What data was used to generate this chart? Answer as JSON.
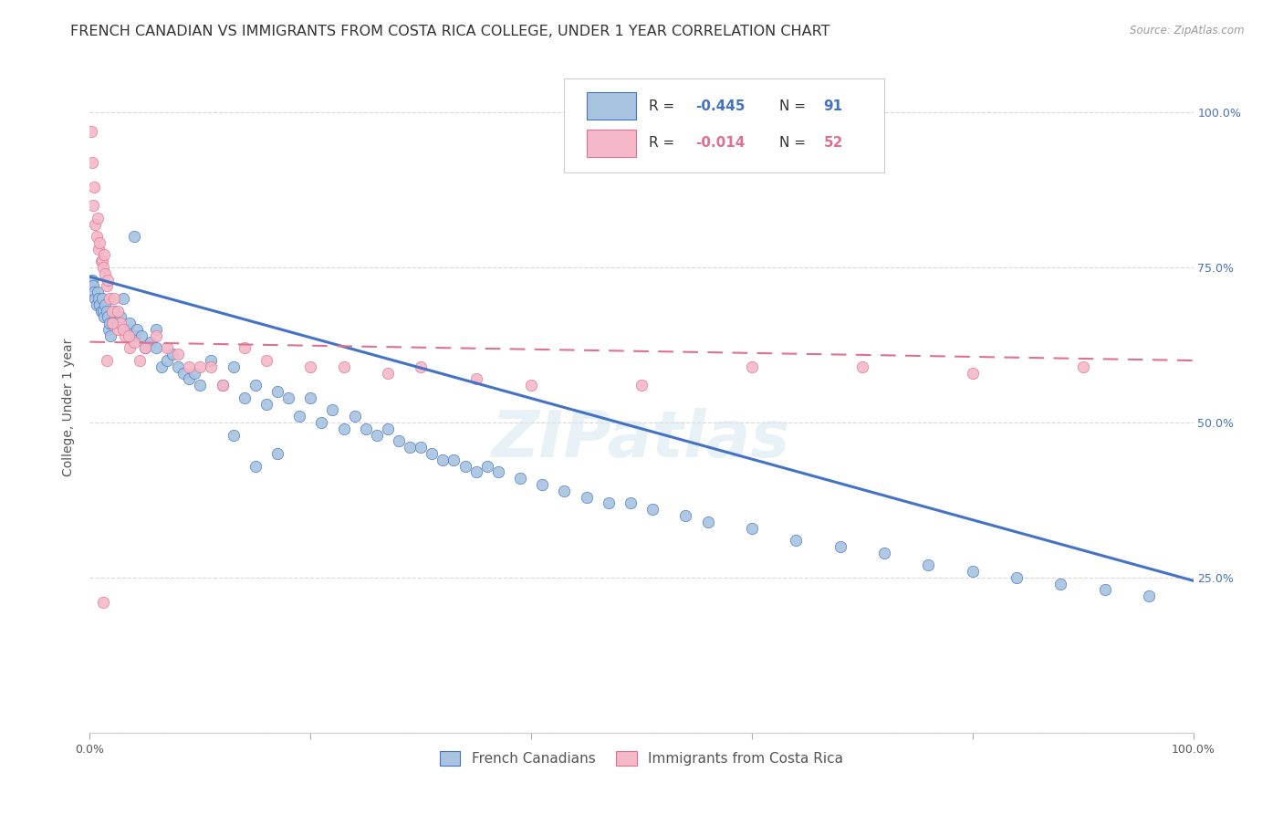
{
  "title": "FRENCH CANADIAN VS IMMIGRANTS FROM COSTA RICA COLLEGE, UNDER 1 YEAR CORRELATION CHART",
  "source": "Source: ZipAtlas.com",
  "ylabel": "College, Under 1 year",
  "ylabel_right_ticks": [
    "100.0%",
    "75.0%",
    "50.0%",
    "25.0%"
  ],
  "ylabel_right_vals": [
    1.0,
    0.75,
    0.5,
    0.25
  ],
  "watermark": "ZIPatlas",
  "blue_R": -0.445,
  "blue_N": 91,
  "pink_R": -0.014,
  "pink_N": 52,
  "blue_color": "#a8c4e0",
  "blue_line_color": "#4472c4",
  "pink_color": "#f4b8c8",
  "pink_line_color": "#e07090",
  "blue_scatter_x": [
    0.001,
    0.002,
    0.003,
    0.004,
    0.005,
    0.006,
    0.007,
    0.008,
    0.009,
    0.01,
    0.011,
    0.012,
    0.013,
    0.014,
    0.015,
    0.016,
    0.017,
    0.018,
    0.019,
    0.02,
    0.022,
    0.025,
    0.028,
    0.03,
    0.033,
    0.036,
    0.04,
    0.043,
    0.047,
    0.05,
    0.055,
    0.06,
    0.065,
    0.07,
    0.075,
    0.08,
    0.085,
    0.09,
    0.095,
    0.1,
    0.11,
    0.12,
    0.13,
    0.14,
    0.15,
    0.16,
    0.17,
    0.18,
    0.19,
    0.2,
    0.21,
    0.22,
    0.23,
    0.24,
    0.25,
    0.26,
    0.27,
    0.28,
    0.29,
    0.3,
    0.31,
    0.32,
    0.33,
    0.34,
    0.35,
    0.36,
    0.37,
    0.39,
    0.41,
    0.43,
    0.45,
    0.47,
    0.49,
    0.51,
    0.54,
    0.56,
    0.6,
    0.64,
    0.68,
    0.72,
    0.76,
    0.8,
    0.84,
    0.88,
    0.92,
    0.96,
    0.13,
    0.15,
    0.17,
    0.04,
    0.06
  ],
  "blue_scatter_y": [
    0.72,
    0.73,
    0.72,
    0.71,
    0.7,
    0.69,
    0.71,
    0.7,
    0.69,
    0.68,
    0.7,
    0.68,
    0.67,
    0.69,
    0.68,
    0.67,
    0.65,
    0.66,
    0.64,
    0.66,
    0.68,
    0.66,
    0.67,
    0.7,
    0.65,
    0.66,
    0.64,
    0.65,
    0.64,
    0.62,
    0.63,
    0.62,
    0.59,
    0.6,
    0.61,
    0.59,
    0.58,
    0.57,
    0.58,
    0.56,
    0.6,
    0.56,
    0.59,
    0.54,
    0.56,
    0.53,
    0.55,
    0.54,
    0.51,
    0.54,
    0.5,
    0.52,
    0.49,
    0.51,
    0.49,
    0.48,
    0.49,
    0.47,
    0.46,
    0.46,
    0.45,
    0.44,
    0.44,
    0.43,
    0.42,
    0.43,
    0.42,
    0.41,
    0.4,
    0.39,
    0.38,
    0.37,
    0.37,
    0.36,
    0.35,
    0.34,
    0.33,
    0.31,
    0.3,
    0.29,
    0.27,
    0.26,
    0.25,
    0.24,
    0.23,
    0.22,
    0.48,
    0.43,
    0.45,
    0.8,
    0.65
  ],
  "pink_scatter_x": [
    0.001,
    0.002,
    0.003,
    0.004,
    0.005,
    0.006,
    0.007,
    0.008,
    0.009,
    0.01,
    0.011,
    0.012,
    0.013,
    0.014,
    0.015,
    0.016,
    0.018,
    0.02,
    0.022,
    0.025,
    0.028,
    0.032,
    0.036,
    0.04,
    0.045,
    0.05,
    0.06,
    0.07,
    0.08,
    0.09,
    0.1,
    0.11,
    0.12,
    0.14,
    0.16,
    0.2,
    0.23,
    0.27,
    0.3,
    0.35,
    0.4,
    0.5,
    0.6,
    0.7,
    0.8,
    0.9,
    0.02,
    0.025,
    0.03,
    0.035,
    0.015,
    0.012
  ],
  "pink_scatter_y": [
    0.97,
    0.92,
    0.85,
    0.88,
    0.82,
    0.8,
    0.83,
    0.78,
    0.79,
    0.76,
    0.76,
    0.75,
    0.77,
    0.74,
    0.72,
    0.73,
    0.7,
    0.68,
    0.7,
    0.65,
    0.66,
    0.64,
    0.62,
    0.63,
    0.6,
    0.62,
    0.64,
    0.62,
    0.61,
    0.59,
    0.59,
    0.59,
    0.56,
    0.62,
    0.6,
    0.59,
    0.59,
    0.58,
    0.59,
    0.57,
    0.56,
    0.56,
    0.59,
    0.59,
    0.58,
    0.59,
    0.66,
    0.68,
    0.65,
    0.64,
    0.6,
    0.21
  ],
  "blue_trendline_x": [
    0.0,
    1.0
  ],
  "blue_trendline_y": [
    0.735,
    0.245
  ],
  "pink_trendline_x": [
    0.0,
    1.0
  ],
  "pink_trendline_y": [
    0.63,
    0.6
  ],
  "xlim": [
    0.0,
    1.0
  ],
  "ylim": [
    0.0,
    1.05
  ],
  "grid_color": "#d8d8d8",
  "background_color": "#ffffff",
  "title_fontsize": 11.5,
  "axis_label_fontsize": 10,
  "tick_fontsize": 9,
  "legend_fontsize": 11
}
